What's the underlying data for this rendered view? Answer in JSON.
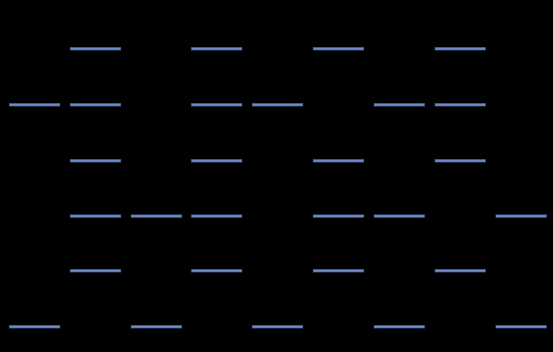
{
  "colors": {
    "background": "#000000",
    "segment": "#6a85c8"
  }
}
